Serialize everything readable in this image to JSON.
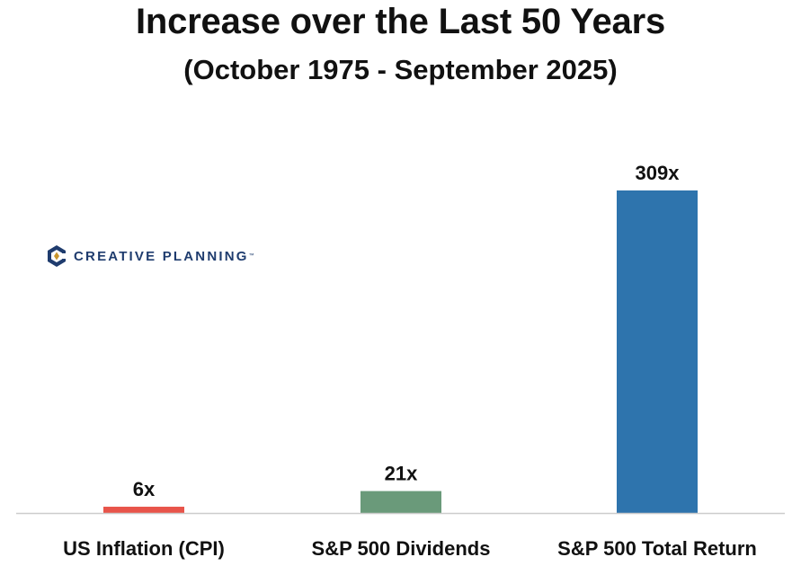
{
  "chart_data": {
    "type": "bar",
    "title": "Increase over the Last 50 Years",
    "subtitle": "(October 1975 - September 2025)",
    "categories": [
      "US Inflation (CPI)",
      "S&P 500 Dividends",
      "S&P 500 Total Return"
    ],
    "values": [
      6,
      21,
      309
    ],
    "data_labels": [
      "6x",
      "21x",
      "309x"
    ],
    "colors": [
      "#e8544a",
      "#6a9a7a",
      "#2e74ad"
    ],
    "ylim": [
      0,
      340
    ],
    "grid": false,
    "xlabel": "",
    "ylabel": ""
  },
  "logo": {
    "text": "CREATIVE PLANNING",
    "mark": "™",
    "colors": {
      "primary": "#1f3c6e",
      "accent": "#c9962d"
    }
  }
}
